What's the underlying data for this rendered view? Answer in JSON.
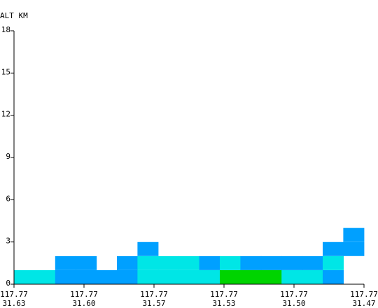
{
  "chart_data": {
    "type": "heatmap",
    "ylabel": "ALT KM",
    "ylim": [
      0,
      18
    ],
    "y_ticks": [
      "0",
      "3",
      "6",
      "9",
      "12",
      "15",
      "18"
    ],
    "x_ticks": [
      {
        "lon": "117.77",
        "lat": "31.63"
      },
      {
        "lon": "117.77",
        "lat": "31.60"
      },
      {
        "lon": "117.77",
        "lat": "31.57"
      },
      {
        "lon": "117.77",
        "lat": "31.53"
      },
      {
        "lon": "117.77",
        "lat": "31.50"
      },
      {
        "lon": "117.77",
        "lat": "31.47"
      }
    ],
    "bin_height_km": 1,
    "colors": {
      "light": "#00e6e6",
      "medium": "#00a0ff",
      "strong": "#00d400",
      "axis": "#000000"
    },
    "columns": [
      {
        "index": 0,
        "cells": [
          {
            "alt": 1,
            "level": "light"
          }
        ]
      },
      {
        "index": 1,
        "cells": [
          {
            "alt": 1,
            "level": "light"
          }
        ]
      },
      {
        "index": 2,
        "cells": [
          {
            "alt": 1,
            "level": "medium"
          },
          {
            "alt": 2,
            "level": "medium"
          }
        ]
      },
      {
        "index": 3,
        "cells": [
          {
            "alt": 1,
            "level": "medium"
          },
          {
            "alt": 2,
            "level": "medium"
          }
        ]
      },
      {
        "index": 4,
        "cells": [
          {
            "alt": 1,
            "level": "medium"
          }
        ]
      },
      {
        "index": 5,
        "cells": [
          {
            "alt": 1,
            "level": "medium"
          },
          {
            "alt": 2,
            "level": "medium"
          }
        ]
      },
      {
        "index": 6,
        "cells": [
          {
            "alt": 1,
            "level": "light"
          },
          {
            "alt": 2,
            "level": "light"
          },
          {
            "alt": 3,
            "level": "medium"
          }
        ]
      },
      {
        "index": 7,
        "cells": [
          {
            "alt": 1,
            "level": "light"
          },
          {
            "alt": 2,
            "level": "light"
          }
        ]
      },
      {
        "index": 8,
        "cells": [
          {
            "alt": 1,
            "level": "light"
          },
          {
            "alt": 2,
            "level": "light"
          }
        ]
      },
      {
        "index": 9,
        "cells": [
          {
            "alt": 1,
            "level": "light"
          },
          {
            "alt": 2,
            "level": "medium"
          }
        ]
      },
      {
        "index": 10,
        "cells": [
          {
            "alt": 1,
            "level": "strong"
          },
          {
            "alt": 2,
            "level": "light"
          }
        ]
      },
      {
        "index": 11,
        "cells": [
          {
            "alt": 1,
            "level": "strong"
          },
          {
            "alt": 2,
            "level": "medium"
          }
        ]
      },
      {
        "index": 12,
        "cells": [
          {
            "alt": 1,
            "level": "strong"
          },
          {
            "alt": 2,
            "level": "medium"
          }
        ]
      },
      {
        "index": 13,
        "cells": [
          {
            "alt": 1,
            "level": "light"
          },
          {
            "alt": 2,
            "level": "medium"
          }
        ]
      },
      {
        "index": 14,
        "cells": [
          {
            "alt": 1,
            "level": "light"
          },
          {
            "alt": 2,
            "level": "medium"
          }
        ]
      },
      {
        "index": 15,
        "cells": [
          {
            "alt": 1,
            "level": "medium"
          },
          {
            "alt": 2,
            "level": "light"
          },
          {
            "alt": 3,
            "level": "medium"
          }
        ]
      },
      {
        "index": 16,
        "cells": [
          {
            "alt": 3,
            "level": "medium"
          },
          {
            "alt": 4,
            "level": "medium"
          }
        ]
      }
    ]
  }
}
